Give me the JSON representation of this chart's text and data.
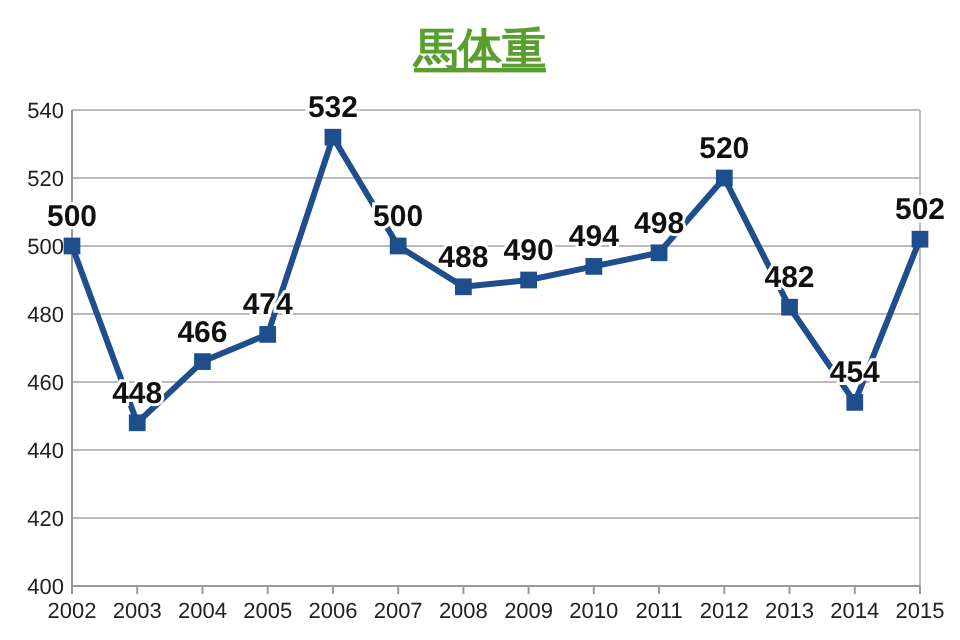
{
  "chart_data": {
    "type": "line",
    "title": "馬体重",
    "categories": [
      "2002",
      "2003",
      "2004",
      "2005",
      "2006",
      "2007",
      "2008",
      "2009",
      "2010",
      "2011",
      "2012",
      "2013",
      "2014",
      "2015"
    ],
    "series": [
      {
        "color": "#1f4e8c",
        "values": [
          500,
          448,
          466,
          474,
          532,
          500,
          488,
          490,
          494,
          498,
          520,
          482,
          454,
          502
        ]
      }
    ],
    "ylim": [
      400,
      540
    ],
    "yticks": [
      400,
      420,
      440,
      460,
      480,
      500,
      520,
      540
    ],
    "grid": "y",
    "marker": "square",
    "line_style": "solid",
    "data_labels": true
  }
}
